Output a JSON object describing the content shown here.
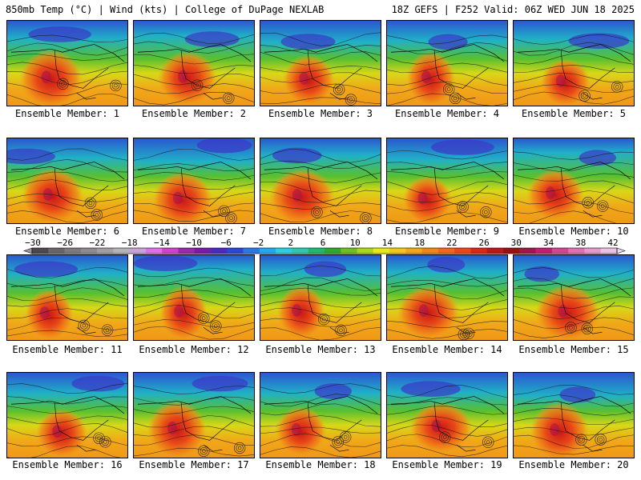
{
  "header": {
    "left": "850mb Temp (°C) | Wind (kts) | College of DuPage NEXLAB",
    "right": "18Z GEFS | F252 Valid: 06Z WED JUN 18 2025"
  },
  "members": [
    "Ensemble Member: 1",
    "Ensemble Member: 2",
    "Ensemble Member: 3",
    "Ensemble Member: 4",
    "Ensemble Member: 5",
    "Ensemble Member: 6",
    "Ensemble Member: 7",
    "Ensemble Member: 8",
    "Ensemble Member: 9",
    "Ensemble Member: 10",
    "Ensemble Member: 11",
    "Ensemble Member: 12",
    "Ensemble Member: 13",
    "Ensemble Member: 14",
    "Ensemble Member: 15",
    "Ensemble Member: 16",
    "Ensemble Member: 17",
    "Ensemble Member: 18",
    "Ensemble Member: 19",
    "Ensemble Member: 20"
  ],
  "colorbar": {
    "ticks": [
      "−30",
      "−26",
      "−22",
      "−18",
      "−14",
      "−10",
      "−6",
      "−2",
      "2",
      "6",
      "10",
      "14",
      "18",
      "22",
      "26",
      "30",
      "34",
      "38",
      "42"
    ],
    "colors": [
      "#4a4a4a",
      "#666666",
      "#7a7a7a",
      "#8c8c8c",
      "#a0a0a0",
      "#b4b4b4",
      "#c8a0dc",
      "#e070e8",
      "#cc44cc",
      "#9a2aa8",
      "#7a1aa8",
      "#4a2ac0",
      "#2a48d8",
      "#2a78e8",
      "#20a8f0",
      "#28d0e0",
      "#30c8a8",
      "#20b870",
      "#30a830",
      "#6cc020",
      "#a8d818",
      "#e8e818",
      "#f0c818",
      "#f0a818",
      "#f08818",
      "#f06818",
      "#e84818",
      "#d82818",
      "#b81818",
      "#981010",
      "#a01848",
      "#c02070",
      "#d04890",
      "#e070b0",
      "#e898c8",
      "#f0c0e0"
    ]
  }
}
